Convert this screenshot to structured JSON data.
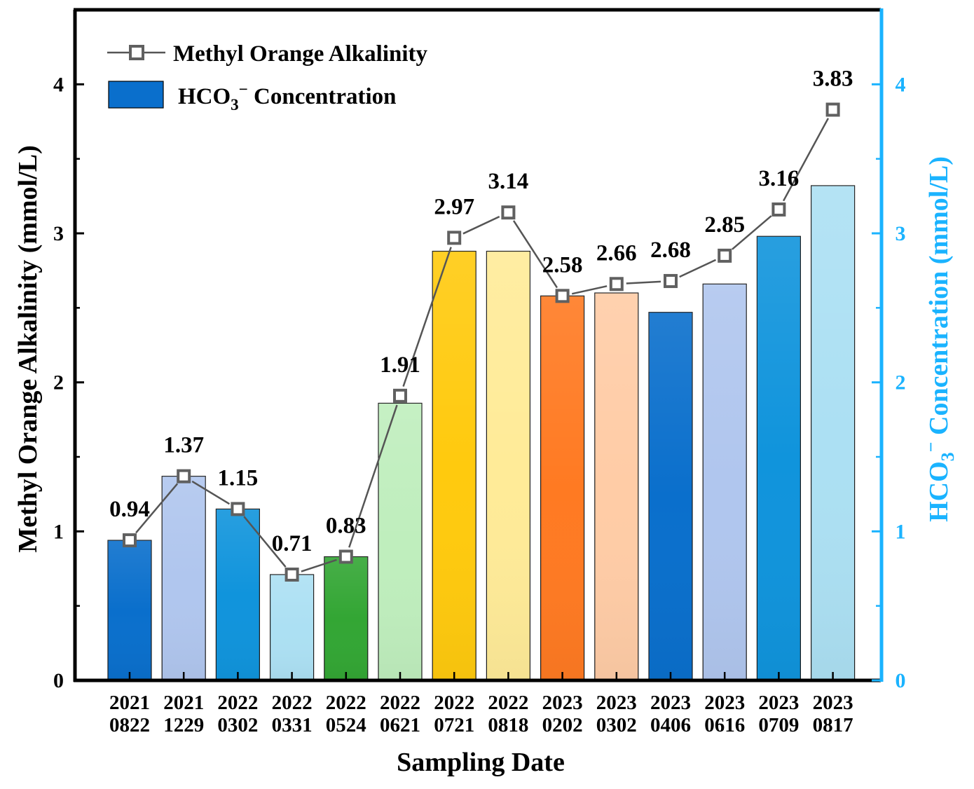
{
  "chart_data": {
    "type": "bar+line",
    "xlabel": "Sampling Date",
    "ylabel_left": "Methyl Orange Alkalinity (mmol/L)",
    "ylabel_right": {
      "prefix": "HCO",
      "sub": "3",
      "sup": "−",
      "suffix": " Concentration (mmol/L)"
    },
    "ylim": [
      0,
      4.5
    ],
    "ytick_values": [
      0,
      1,
      2,
      3,
      4
    ],
    "ytick_labels": [
      "0",
      "1",
      "2",
      "3",
      "4"
    ],
    "categories": [
      [
        "2021",
        "0822"
      ],
      [
        "2021",
        "1229"
      ],
      [
        "2022",
        "0302"
      ],
      [
        "2022",
        "0331"
      ],
      [
        "2022",
        "0524"
      ],
      [
        "2022",
        "0621"
      ],
      [
        "2022",
        "0721"
      ],
      [
        "2022",
        "0818"
      ],
      [
        "2023",
        "0202"
      ],
      [
        "2023",
        "0302"
      ],
      [
        "2023",
        "0406"
      ],
      [
        "2023",
        "0616"
      ],
      [
        "2023",
        "0709"
      ],
      [
        "2023",
        "0817"
      ]
    ],
    "series": [
      {
        "name": "HCO3− Concentration",
        "type": "bar",
        "axis": "right",
        "values": [
          0.94,
          1.37,
          1.15,
          0.71,
          0.83,
          1.86,
          2.88,
          2.88,
          2.58,
          2.6,
          2.47,
          2.66,
          2.98,
          3.32
        ],
        "colors": [
          "#0a6fcc",
          "#b0c6ee",
          "#1094dc",
          "#ace0f3",
          "#33a634",
          "#bfeebd",
          "#ffca0e",
          "#ffeb98",
          "#ff7a22",
          "#ffcca6",
          "#0a6fcc",
          "#b0c6ee",
          "#1094dc",
          "#ace0f3"
        ]
      },
      {
        "name": "Methyl Orange Alkalinity",
        "type": "line",
        "axis": "left",
        "values": [
          0.94,
          1.37,
          1.15,
          0.71,
          0.83,
          1.91,
          2.97,
          3.14,
          2.58,
          2.66,
          2.68,
          2.85,
          3.16,
          3.83
        ],
        "labels": [
          "0.94",
          "1.37",
          "1.15",
          "0.71",
          "0.83",
          "1.91",
          "2.97",
          "3.14",
          "2.58",
          "2.66",
          "2.68",
          "2.85",
          "3.16",
          "3.83"
        ],
        "line_color": "#555555",
        "marker": "open-square"
      }
    ],
    "legend": [
      {
        "text": "Methyl Orange Alkalinity",
        "kind": "line-marker"
      },
      {
        "text_prefix": "HCO",
        "text_sub": "3",
        "text_sup": "−",
        "text_suffix": " Concentration",
        "kind": "bar",
        "color": "#0a6fcc"
      }
    ],
    "legend_position": "top-left",
    "grid": false,
    "colors": {
      "left_axis": "#000000",
      "right_axis": "#1ab3ff"
    }
  }
}
